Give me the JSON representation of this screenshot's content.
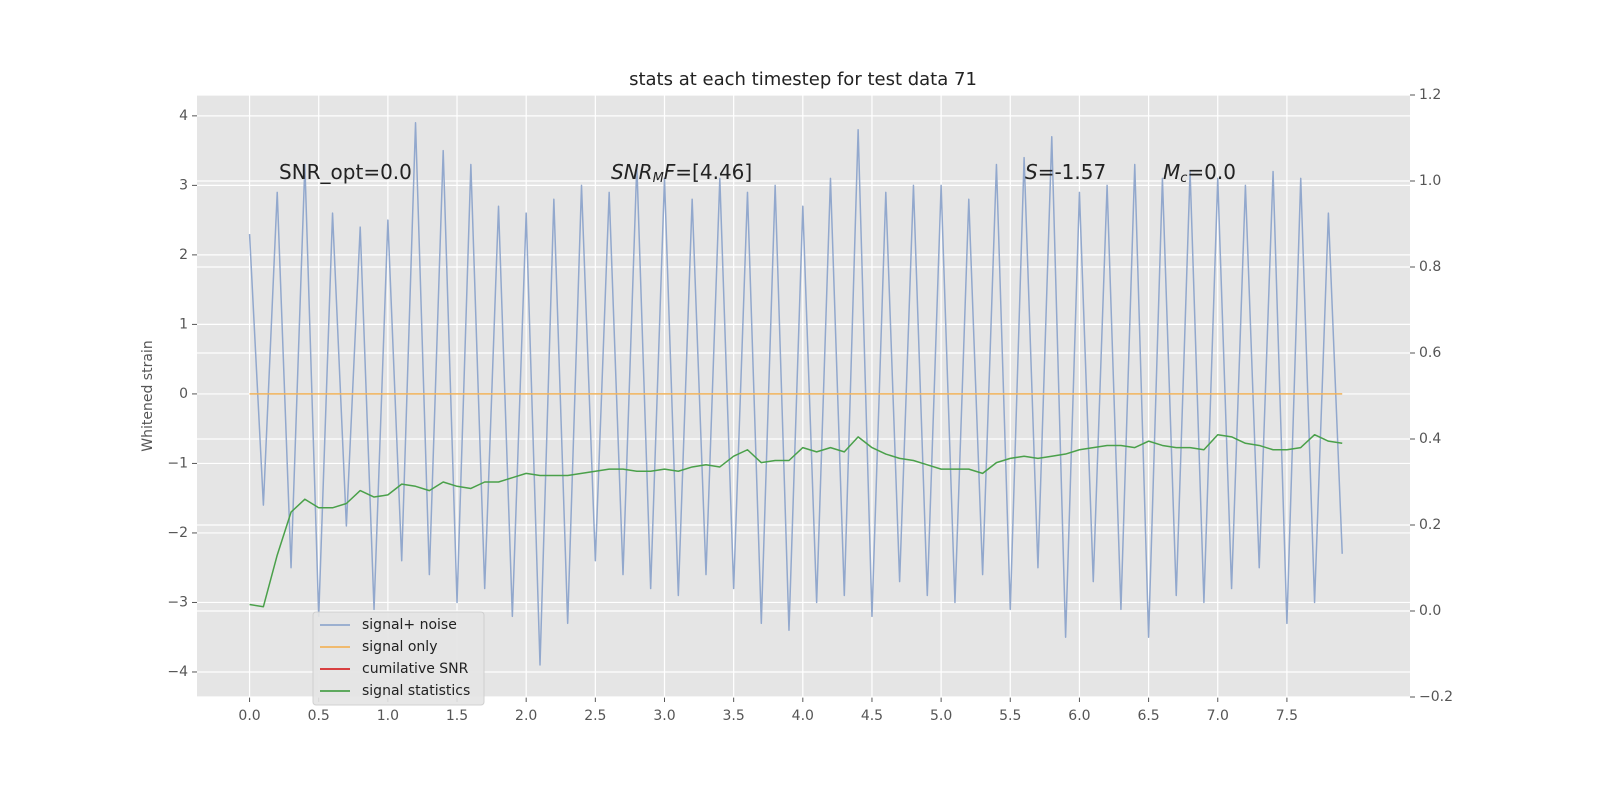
{
  "chart_data": {
    "type": "line",
    "title": "stats at each timestep for test data 71",
    "ylabel": "Whitened strain",
    "x": [
      0.0,
      0.1,
      0.2,
      0.3,
      0.4,
      0.5,
      0.6,
      0.7,
      0.8,
      0.9,
      1.0,
      1.1,
      1.2,
      1.3,
      1.4,
      1.5,
      1.6,
      1.7,
      1.8,
      1.9,
      2.0,
      2.1,
      2.2,
      2.3,
      2.4,
      2.5,
      2.6,
      2.7,
      2.8,
      2.9,
      3.0,
      3.1,
      3.2,
      3.3,
      3.4,
      3.5,
      3.6,
      3.7,
      3.8,
      3.9,
      4.0,
      4.1,
      4.2,
      4.3,
      4.4,
      4.5,
      4.6,
      4.7,
      4.8,
      4.9,
      5.0,
      5.1,
      5.2,
      5.3,
      5.4,
      5.5,
      5.6,
      5.7,
      5.8,
      5.9,
      6.0,
      6.1,
      6.2,
      6.3,
      6.4,
      6.5,
      6.6,
      6.7,
      6.8,
      6.9,
      7.0,
      7.1,
      7.2,
      7.3,
      7.4,
      7.5,
      7.6,
      7.7,
      7.8,
      7.9
    ],
    "series": [
      {
        "name": "signal+ noise",
        "color": "#92a8cd",
        "values": [
          2.3,
          -1.6,
          2.9,
          -2.5,
          3.3,
          -3.2,
          2.6,
          -1.9,
          2.4,
          -3.1,
          2.5,
          -2.4,
          3.9,
          -2.6,
          3.5,
          -3.0,
          3.3,
          -2.8,
          2.7,
          -3.2,
          2.6,
          -3.9,
          2.8,
          -3.3,
          3.0,
          -2.4,
          2.9,
          -2.6,
          3.3,
          -2.8,
          3.1,
          -2.9,
          2.8,
          -2.6,
          3.1,
          -2.8,
          2.9,
          -3.3,
          3.0,
          -3.4,
          2.7,
          -3.0,
          3.1,
          -2.9,
          3.8,
          -3.2,
          2.9,
          -2.7,
          3.0,
          -2.9,
          3.0,
          -3.0,
          2.8,
          -2.6,
          3.3,
          -3.1,
          3.4,
          -2.5,
          3.7,
          -3.5,
          2.9,
          -2.7,
          3.0,
          -3.1,
          3.3,
          -3.5,
          3.1,
          -2.9,
          3.2,
          -3.0,
          3.1,
          -2.8,
          3.0,
          -2.5,
          3.2,
          -3.3,
          3.1,
          -3.0,
          2.6,
          -2.3
        ]
      },
      {
        "name": "signal only",
        "color": "#f2b45c",
        "values": [
          0,
          0,
          0,
          0,
          0,
          0,
          0,
          0,
          0,
          0,
          0,
          0,
          0,
          0,
          0,
          0,
          0,
          0,
          0,
          0,
          0,
          0,
          0,
          0,
          0,
          0,
          0,
          0,
          0,
          0,
          0,
          0,
          0,
          0,
          0,
          0,
          0,
          0,
          0,
          0,
          0,
          0,
          0,
          0,
          0,
          0,
          0,
          0,
          0,
          0,
          0,
          0,
          0,
          0,
          0,
          0,
          0,
          0,
          0,
          0,
          0,
          0,
          0,
          0,
          0,
          0,
          0,
          0,
          0,
          0,
          0,
          0,
          0,
          0,
          0,
          0,
          0,
          0,
          0,
          0
        ]
      },
      {
        "name": "cumilative SNR",
        "color": "#d62728",
        "axis": "y2",
        "values": [
          null,
          null,
          null,
          null,
          null,
          null,
          null,
          null,
          null,
          null,
          null,
          null,
          null,
          null,
          null,
          null,
          null,
          null,
          null,
          null,
          null,
          null,
          null,
          null,
          null,
          null,
          null,
          null,
          null,
          null,
          null,
          null,
          null,
          null,
          null,
          null,
          null,
          null,
          null,
          null,
          null,
          null,
          null,
          null,
          null,
          null,
          null,
          null,
          null,
          null,
          null,
          null,
          null,
          null,
          null,
          null,
          null,
          null,
          null,
          null,
          null,
          null,
          null,
          null,
          null,
          null,
          null,
          null,
          null,
          null,
          null,
          null,
          null,
          null,
          null,
          null,
          null,
          null,
          null,
          null
        ]
      },
      {
        "name": "signal statistics",
        "color": "#4aa04a",
        "axis": "y2",
        "values": [
          0.015,
          0.01,
          0.13,
          0.23,
          0.26,
          0.24,
          0.24,
          0.25,
          0.28,
          0.265,
          0.27,
          0.295,
          0.29,
          0.28,
          0.3,
          0.29,
          0.285,
          0.3,
          0.3,
          0.31,
          0.32,
          0.315,
          0.315,
          0.315,
          0.32,
          0.325,
          0.33,
          0.33,
          0.325,
          0.325,
          0.33,
          0.325,
          0.335,
          0.34,
          0.335,
          0.36,
          0.375,
          0.345,
          0.35,
          0.35,
          0.38,
          0.37,
          0.38,
          0.37,
          0.405,
          0.38,
          0.365,
          0.355,
          0.35,
          0.34,
          0.33,
          0.33,
          0.33,
          0.32,
          0.345,
          0.355,
          0.36,
          0.355,
          0.36,
          0.365,
          0.375,
          0.38,
          0.385,
          0.385,
          0.38,
          0.395,
          0.385,
          0.38,
          0.38,
          0.375,
          0.41,
          0.405,
          0.39,
          0.385,
          0.375,
          0.375,
          0.38,
          0.41,
          0.395,
          0.39
        ]
      }
    ],
    "xlim": [
      -0.38,
      8.39
    ],
    "xticks": [
      {
        "value": 0,
        "label": "0.0"
      },
      {
        "value": 0.5,
        "label": "0.5"
      },
      {
        "value": 1,
        "label": "1.0"
      },
      {
        "value": 1.5,
        "label": "1.5"
      },
      {
        "value": 2,
        "label": "2.0"
      },
      {
        "value": 2.5,
        "label": "2.5"
      },
      {
        "value": 3,
        "label": "3.0"
      },
      {
        "value": 3.5,
        "label": "3.5"
      },
      {
        "value": 4,
        "label": "4.0"
      },
      {
        "value": 4.5,
        "label": "4.5"
      },
      {
        "value": 5,
        "label": "5.0"
      },
      {
        "value": 5.5,
        "label": "5.5"
      },
      {
        "value": 6,
        "label": "6.0"
      },
      {
        "value": 6.5,
        "label": "6.5"
      },
      {
        "value": 7,
        "label": "7.0"
      },
      {
        "value": 7.5,
        "label": "7.5"
      }
    ],
    "ylim": [
      -4.36,
      4.3
    ],
    "yticks": [
      {
        "value": -4,
        "label": "−4"
      },
      {
        "value": -3,
        "label": "−3"
      },
      {
        "value": -2,
        "label": "−2"
      },
      {
        "value": -1,
        "label": "−1"
      },
      0,
      1,
      2,
      3,
      4
    ],
    "y2lim": [
      -0.2,
      1.2
    ],
    "y2ticks": [
      {
        "value": -0.2,
        "label": "−0.2"
      },
      {
        "value": 0,
        "label": "0.0"
      },
      {
        "value": 0.2,
        "label": "0.2"
      },
      {
        "value": 0.4,
        "label": "0.4"
      },
      {
        "value": 0.6,
        "label": "0.6"
      },
      {
        "value": 0.8,
        "label": "0.8"
      },
      {
        "value": 1,
        "label": "1.0"
      },
      {
        "value": 1.2,
        "label": "1.2"
      }
    ],
    "grid": true,
    "legend": "lower left",
    "annotations": [
      [
        {
          "text": "SNR_opt=0.0"
        }
      ],
      [
        {
          "text": "SNR",
          "style": "italic"
        },
        {
          "text": "M",
          "style": "sub"
        },
        {
          "text": "F",
          "style": "italic"
        },
        {
          "text": "=[4.46]"
        }
      ],
      [
        {
          "text": "S",
          "style": "italic"
        },
        {
          "text": "=-1.57"
        }
      ],
      [
        {
          "text": "M",
          "style": "italic"
        },
        {
          "text": "c",
          "style": "sub"
        },
        {
          "text": "=0.0"
        }
      ]
    ]
  }
}
